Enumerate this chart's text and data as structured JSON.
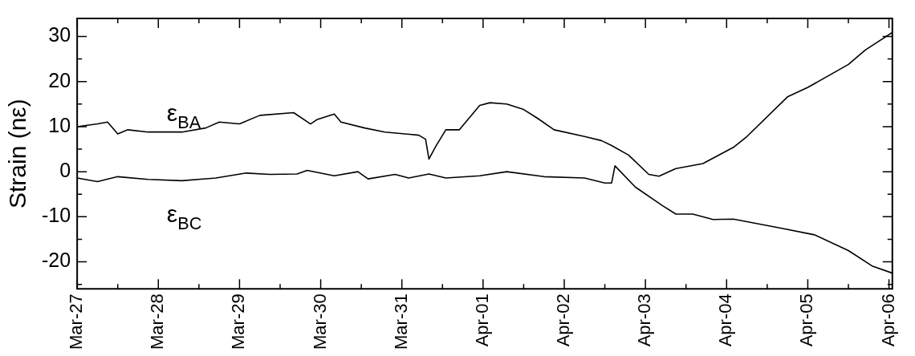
{
  "chart_data": {
    "type": "line",
    "ylabel": "Strain (nε)",
    "xlim": [
      "--03-27",
      "--04-06T01:00"
    ],
    "ylim": [
      -26,
      34
    ],
    "xticks": [
      {
        "value": "--03-27",
        "label": "Mar-27"
      },
      {
        "value": "--03-27T12:00",
        "label": null
      },
      {
        "value": "--03-28",
        "label": "Mar-28"
      },
      {
        "value": "--03-28T12:00",
        "label": null
      },
      {
        "value": "--03-29",
        "label": "Mar-29"
      },
      {
        "value": "--03-29T12:00",
        "label": null
      },
      {
        "value": "--03-30",
        "label": "Mar-30"
      },
      {
        "value": "--03-30T12:00",
        "label": null
      },
      {
        "value": "--03-31",
        "label": "Mar-31"
      },
      {
        "value": "--03-31T12:00",
        "label": null
      },
      {
        "value": "--04-01",
        "label": "Apr-01"
      },
      {
        "value": "--04-01T12:00",
        "label": null
      },
      {
        "value": "--04-02",
        "label": "Apr-02"
      },
      {
        "value": "--04-02T12:00",
        "label": null
      },
      {
        "value": "--04-03",
        "label": "Apr-03"
      },
      {
        "value": "--04-03T12:00",
        "label": null
      },
      {
        "value": "--04-04",
        "label": "Apr-04"
      },
      {
        "value": "--04-04T12:00",
        "label": null
      },
      {
        "value": "--04-05",
        "label": "Apr-05"
      },
      {
        "value": "--04-05T12:00",
        "label": null
      },
      {
        "value": "--04-06",
        "label": "Apr-06"
      }
    ],
    "yticks": [
      {
        "value": -25,
        "label": null
      },
      -20,
      {
        "value": -15,
        "label": null
      },
      -10,
      {
        "value": -5,
        "label": null
      },
      0,
      {
        "value": 5,
        "label": null
      },
      10,
      {
        "value": 15,
        "label": null
      },
      20,
      {
        "value": 25,
        "label": null
      },
      30
    ],
    "grid": false,
    "legend": false,
    "marker": "none",
    "line_style": "solid",
    "series": [
      {
        "name": "ε$_{BA}$",
        "color": "#000000",
        "x": [
          "--03-27T00:00",
          "--03-27T06:00",
          "--03-27T09:00",
          "--03-27T12:00",
          "--03-27T15:00",
          "--03-27T21:00",
          "--03-28T07:00",
          "--03-28T14:00",
          "--03-28T18:00",
          "--03-29T00:00",
          "--03-29T06:00",
          "--03-29T16:00",
          "--03-29T21:00",
          "--03-29T23:00",
          "--03-30T04:00",
          "--03-30T06:00",
          "--03-30T13:00",
          "--03-30T19:00",
          "--03-31T05:00",
          "--03-31T07:00",
          "--03-31T08:00",
          "--03-31T10:00",
          "--03-31T13:00",
          "--03-31T17:00",
          "--03-31T23:00",
          "--04-01T02:00",
          "--04-01T07:00",
          "--04-01T12:00",
          "--04-01T16:00",
          "--04-01T21:00",
          "--04-02T06:00",
          "--04-02T11:00",
          "--04-02T14:00",
          "--04-02T19:00",
          "--04-03T01:00",
          "--04-03T04:00",
          "--04-03T09:00",
          "--04-03T17:00",
          "--04-04T02:00",
          "--04-04T06:00",
          "--04-04T18:00",
          "--04-05T00:00",
          "--04-05T12:00",
          "--04-05T17:00",
          "--04-06T01:00"
        ],
        "values": [
          10.0,
          10.6,
          11.0,
          8.4,
          9.3,
          8.8,
          8.8,
          9.7,
          11.0,
          10.6,
          12.5,
          13.1,
          10.6,
          11.6,
          12.8,
          11.0,
          9.7,
          8.8,
          8.1,
          7.2,
          2.8,
          5.6,
          9.3,
          9.3,
          14.7,
          15.3,
          15.0,
          13.8,
          11.9,
          9.3,
          7.8,
          6.9,
          5.8,
          3.7,
          -0.6,
          -1.0,
          0.7,
          1.8,
          5.4,
          7.8,
          16.6,
          18.7,
          23.8,
          27.0,
          30.9
        ]
      },
      {
        "name": "ε$_{BC}$",
        "color": "#000000",
        "x": [
          "--03-27T00:00",
          "--03-27T06:00",
          "--03-27T12:00",
          "--03-27T21:00",
          "--03-28T07:00",
          "--03-28T17:00",
          "--03-29T02:00",
          "--03-29T09:00",
          "--03-29T17:00",
          "--03-29T20:00",
          "--03-30T04:00",
          "--03-30T11:00",
          "--03-30T14:00",
          "--03-30T22:00",
          "--03-31T02:00",
          "--03-31T08:00",
          "--03-31T13:00",
          "--03-31T23:00",
          "--04-01T07:00",
          "--04-01T18:00",
          "--04-02T06:00",
          "--04-02T12:00",
          "--04-02T14:00",
          "--04-02T15:00",
          "--04-02T21:00",
          "--04-03T05:00",
          "--04-03T09:00",
          "--04-03T14:00",
          "--04-03T20:00",
          "--04-04T02:00",
          "--04-04T16:00",
          "--04-05T02:00",
          "--04-05T12:00",
          "--04-05T19:00",
          "--04-06T01:00"
        ],
        "values": [
          -1.4,
          -2.2,
          -1.1,
          -1.7,
          -2.0,
          -1.4,
          -0.3,
          -0.6,
          -0.5,
          0.3,
          -0.9,
          0.0,
          -1.6,
          -0.6,
          -1.4,
          -0.5,
          -1.4,
          -0.9,
          0.0,
          -1.1,
          -1.4,
          -2.5,
          -2.5,
          1.3,
          -3.4,
          -7.5,
          -9.4,
          -9.4,
          -10.6,
          -10.5,
          -12.5,
          -14.0,
          -17.5,
          -20.9,
          -22.5
        ]
      }
    ]
  }
}
